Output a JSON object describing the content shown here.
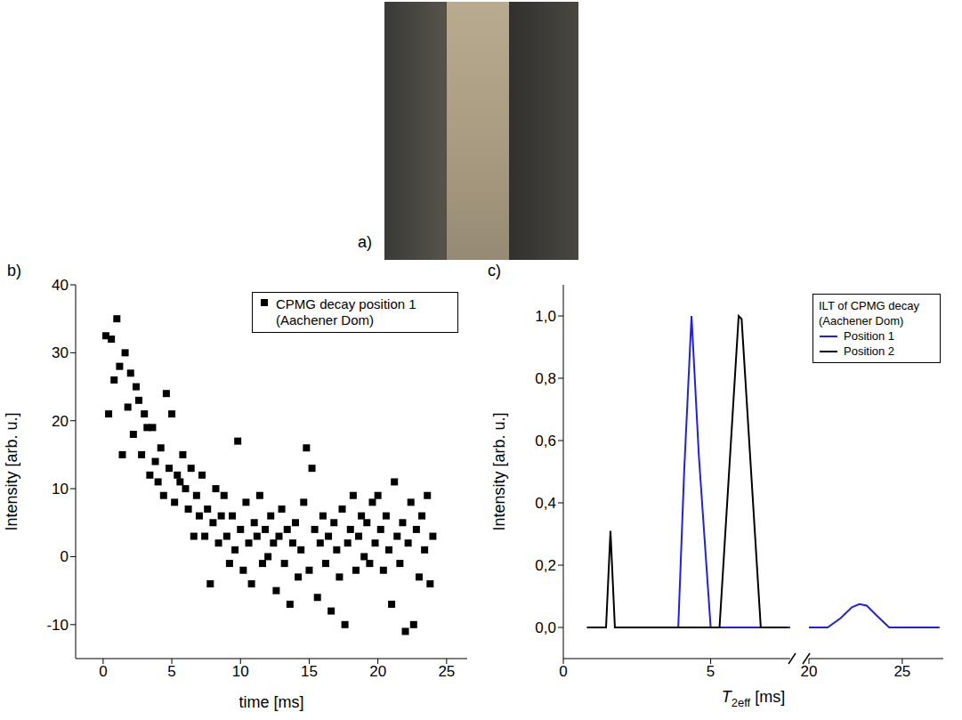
{
  "photo": {
    "panel_label": "a)"
  },
  "chart_data": [
    {
      "panel_label": "b)",
      "type": "scatter",
      "xlabel": "time [ms]",
      "ylabel": "Intensity [arb. u.]",
      "xlim": [
        -2,
        26.5
      ],
      "xticks": [
        0,
        5,
        10,
        15,
        20,
        25
      ],
      "ylim": [
        -15,
        40
      ],
      "yticks": [
        -10,
        0,
        10,
        20,
        30,
        40
      ],
      "grid": false,
      "legend": "upper right",
      "series": [
        {
          "name": "CPMG decay position 1 (Aachener Dom)",
          "color": "#000000",
          "marker": "square",
          "x": [
            0.2,
            0.4,
            0.6,
            0.8,
            1.0,
            1.2,
            1.4,
            1.6,
            1.8,
            2.0,
            2.2,
            2.4,
            2.6,
            2.8,
            3.0,
            3.2,
            3.4,
            3.6,
            3.8,
            4.0,
            4.2,
            4.4,
            4.6,
            4.8,
            5.0,
            5.2,
            5.4,
            5.6,
            5.8,
            6.0,
            6.2,
            6.4,
            6.6,
            6.8,
            7.0,
            7.2,
            7.4,
            7.6,
            7.8,
            8.0,
            8.2,
            8.4,
            8.6,
            8.8,
            9.0,
            9.2,
            9.4,
            9.6,
            9.8,
            10.0,
            10.2,
            10.4,
            10.6,
            10.8,
            11.0,
            11.2,
            11.4,
            11.6,
            11.8,
            12.0,
            12.2,
            12.4,
            12.6,
            12.8,
            13.0,
            13.2,
            13.4,
            13.6,
            13.8,
            14.0,
            14.2,
            14.4,
            14.6,
            14.8,
            15.0,
            15.2,
            15.4,
            15.6,
            15.8,
            16.0,
            16.2,
            16.4,
            16.6,
            16.8,
            17.0,
            17.2,
            17.4,
            17.6,
            17.8,
            18.0,
            18.2,
            18.4,
            18.6,
            18.8,
            19.0,
            19.2,
            19.4,
            19.6,
            19.8,
            20.0,
            20.2,
            20.4,
            20.6,
            20.8,
            21.0,
            21.2,
            21.4,
            21.6,
            21.8,
            22.0,
            22.2,
            22.4,
            22.6,
            22.8,
            23.0,
            23.2,
            23.4,
            23.6,
            23.8,
            24.0
          ],
          "values": [
            32.5,
            21,
            32,
            26,
            35,
            28,
            15,
            30,
            22,
            27,
            18,
            25,
            23,
            15,
            21,
            19,
            12,
            19,
            14,
            11,
            16,
            9,
            24,
            13,
            21,
            8,
            12,
            11,
            15,
            10,
            7,
            13,
            3,
            9,
            6,
            12,
            3,
            7,
            -4,
            5,
            10,
            2,
            6,
            9,
            3,
            -1,
            6,
            1,
            17,
            4,
            -2,
            8,
            2,
            -4,
            5,
            3,
            9,
            -1,
            4,
            0,
            6,
            2,
            -5,
            3,
            7,
            -1,
            4,
            -7,
            2,
            5,
            -3,
            1,
            8,
            16,
            -2,
            13,
            4,
            -6,
            2,
            6,
            -1,
            3,
            -8,
            5,
            1,
            -3,
            7,
            -10,
            2,
            4,
            9,
            -2,
            3,
            6,
            0,
            5,
            -1,
            8,
            2,
            9,
            4,
            -2,
            6,
            1,
            -7,
            11,
            3,
            -1,
            5,
            -11,
            2,
            8,
            -10,
            4,
            -3,
            6,
            1,
            9,
            -4,
            3
          ]
        }
      ]
    },
    {
      "panel_label": "c)",
      "type": "line",
      "xlabel": {
        "base": "T",
        "sub": "2eff",
        "rest": " [ms]"
      },
      "ylabel": "Intensity [arb. u.]",
      "xlim": [
        0,
        27.2
      ],
      "xbreak": [
        7.7,
        20
      ],
      "xticks": [
        0,
        5,
        20,
        25
      ],
      "ylim": [
        -0.1,
        1.1
      ],
      "yticks": [
        {
          "value": 0,
          "label": "0,0"
        },
        {
          "value": 0.2,
          "label": "0,2"
        },
        {
          "value": 0.4,
          "label": "0,4"
        },
        {
          "value": 0.6,
          "label": "0,6"
        },
        {
          "value": 0.8,
          "label": "0,8"
        },
        {
          "value": 1,
          "label": "1,0"
        }
      ],
      "grid": false,
      "legend": "upper right",
      "legend_title": "ILT of CPMG decay (Aachener Dom)",
      "series": [
        {
          "name": "Position 1",
          "color": "#2020e0",
          "x": [
            3.9,
            4.1,
            4.35,
            4.6,
            5.0,
            20,
            21,
            21.7,
            22.3,
            22.7,
            23.1,
            23.6,
            24.3,
            27
          ],
          "values": [
            0,
            0.5,
            1.0,
            0.55,
            0,
            0,
            0,
            0.03,
            0.065,
            0.075,
            0.07,
            0.04,
            0,
            0
          ]
        },
        {
          "name": "Position 2",
          "color": "#000000",
          "x": [
            0.8,
            1.45,
            1.6,
            1.75,
            5.3,
            5.95,
            6.05,
            6.7,
            7.6
          ],
          "values": [
            0,
            0,
            0.31,
            0,
            0,
            1.0,
            0.99,
            0,
            0
          ]
        }
      ]
    }
  ]
}
